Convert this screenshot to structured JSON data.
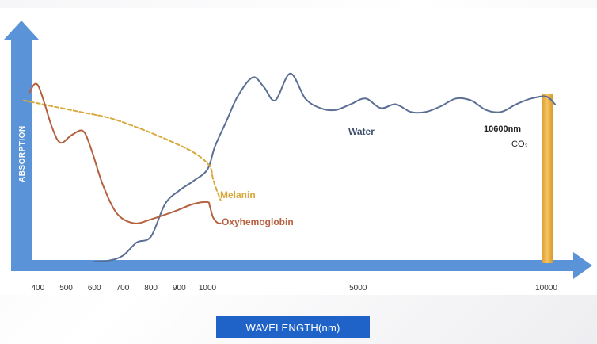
{
  "chart_data": {
    "type": "line",
    "title": "",
    "xlabel": "WAVELENGTH(nm)",
    "ylabel": "ABSORPTION",
    "x_ticks": [
      "400",
      "500",
      "600",
      "700",
      "800",
      "900",
      "1000",
      "5000",
      "10000"
    ],
    "series": [
      {
        "name": "Water",
        "color": "#5b6e93",
        "points": [
          [
            600,
            0
          ],
          [
            650,
            0.5
          ],
          [
            700,
            3
          ],
          [
            750,
            10
          ],
          [
            800,
            13
          ],
          [
            850,
            30
          ],
          [
            900,
            37
          ],
          [
            950,
            42
          ],
          [
            1000,
            48
          ],
          [
            1200,
            60
          ],
          [
            1500,
            73
          ],
          [
            1800,
            86
          ],
          [
            2200,
            96
          ],
          [
            2500,
            91
          ],
          [
            2800,
            84
          ],
          [
            3200,
            98
          ],
          [
            3600,
            85
          ],
          [
            4000,
            80
          ],
          [
            4400,
            79
          ],
          [
            4800,
            82
          ],
          [
            5200,
            85
          ],
          [
            5600,
            80
          ],
          [
            6000,
            82
          ],
          [
            6400,
            78
          ],
          [
            6800,
            78
          ],
          [
            7200,
            81
          ],
          [
            7600,
            85
          ],
          [
            8000,
            84
          ],
          [
            8400,
            79
          ],
          [
            8800,
            78
          ],
          [
            9200,
            82
          ],
          [
            9600,
            85
          ],
          [
            10000,
            86
          ],
          [
            10300,
            82
          ]
        ]
      },
      {
        "name": "Melanin",
        "color": "#d8a93c",
        "dashed": true,
        "points": [
          [
            350,
            84
          ],
          [
            450,
            81
          ],
          [
            550,
            78
          ],
          [
            650,
            75
          ],
          [
            750,
            70
          ],
          [
            850,
            64
          ],
          [
            950,
            57
          ],
          [
            1050,
            50
          ],
          [
            1150,
            43
          ],
          [
            1250,
            37
          ],
          [
            1350,
            32
          ]
        ]
      },
      {
        "name": "Oxyhemoglobin",
        "color": "#b5613f",
        "points": [
          [
            370,
            88
          ],
          [
            400,
            92
          ],
          [
            450,
            70
          ],
          [
            480,
            62
          ],
          [
            520,
            66
          ],
          [
            560,
            68
          ],
          [
            590,
            58
          ],
          [
            630,
            40
          ],
          [
            680,
            25
          ],
          [
            740,
            20
          ],
          [
            800,
            22
          ],
          [
            880,
            26
          ],
          [
            950,
            30
          ],
          [
            1000,
            31
          ],
          [
            1060,
            29
          ],
          [
            1150,
            23
          ],
          [
            1280,
            20
          ],
          [
            1350,
            20
          ]
        ]
      }
    ],
    "annotations": [
      {
        "text": "10600nm",
        "x": 10600
      },
      {
        "text": "CO₂",
        "x": 10600
      }
    ],
    "grid": false,
    "legend": "inline"
  }
}
